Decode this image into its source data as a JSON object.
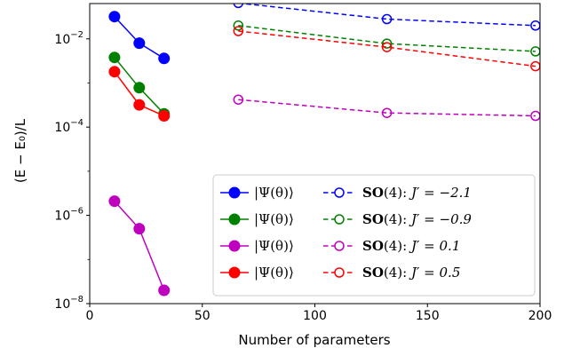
{
  "chart_data": {
    "type": "line",
    "xlabel": "Number of parameters",
    "ylabel": "(E − E₀)/L",
    "xlim": [
      0,
      200
    ],
    "ylim_log10": [
      -8,
      -1.2
    ],
    "yscale": "log",
    "x_ticks": [
      0,
      50,
      100,
      150,
      200
    ],
    "x_tick_labels": [
      "0",
      "50",
      "100",
      "150",
      "200"
    ],
    "y_ticks_log10": [
      -8,
      -6,
      -4,
      -2
    ],
    "y_tick_labels": [
      {
        "base": "10",
        "exp": "−8"
      },
      {
        "base": "10",
        "exp": "−6"
      },
      {
        "base": "10",
        "exp": "−4"
      },
      {
        "base": "10",
        "exp": "−2"
      }
    ],
    "grid": false,
    "legend_position": "lower-right",
    "series": [
      {
        "name": "|Ψ(θ)⟩",
        "pair": 0,
        "style": "solid-filled",
        "color": "#0000ff",
        "x": [
          11,
          22,
          33
        ],
        "y": [
          0.032,
          0.008,
          0.0036
        ]
      },
      {
        "name": "|Ψ(θ)⟩",
        "pair": 1,
        "style": "solid-filled",
        "color": "#008000",
        "x": [
          11,
          22,
          33
        ],
        "y": [
          0.0038,
          0.00078,
          0.0002
        ]
      },
      {
        "name": "|Ψ(θ)⟩",
        "pair": 2,
        "style": "solid-filled",
        "color": "#bf00bf",
        "x": [
          11,
          22,
          33
        ],
        "y": [
          2.1e-06,
          5e-07,
          2e-08
        ]
      },
      {
        "name": "|Ψ(θ)⟩",
        "pair": 3,
        "style": "solid-filled",
        "color": "#ff0000",
        "x": [
          11,
          22,
          33
        ],
        "y": [
          0.0018,
          0.00032,
          0.00018
        ]
      },
      {
        "name": "SO(4): J′ = −2.1",
        "pair": 0,
        "style": "dashed-open",
        "color": "#0000ff",
        "x": [
          66,
          132,
          198
        ],
        "y": [
          0.065,
          0.028,
          0.02
        ]
      },
      {
        "name": "SO(4): J′ = −0.9",
        "pair": 1,
        "style": "dashed-open",
        "color": "#008000",
        "x": [
          66,
          132,
          198
        ],
        "y": [
          0.02,
          0.0078,
          0.0052
        ]
      },
      {
        "name": "SO(4): J′ = 0.1",
        "pair": 2,
        "style": "dashed-open",
        "color": "#bf00bf",
        "x": [
          66,
          132,
          198
        ],
        "y": [
          0.00042,
          0.00021,
          0.00018
        ]
      },
      {
        "name": "SO(4): J′ = 0.5",
        "pair": 3,
        "style": "dashed-open",
        "color": "#ff0000",
        "x": [
          66,
          132,
          198
        ],
        "y": [
          0.015,
          0.0065,
          0.0024
        ]
      }
    ],
    "legend": {
      "left_label": "|Ψ(θ)⟩",
      "right_prefix_bold": "SO",
      "right_prefix_rest": "(4): ",
      "right_values": [
        "J′ = −2.1",
        "J′ = −0.9",
        "J′ = 0.1",
        "J′ = 0.5"
      ]
    }
  }
}
